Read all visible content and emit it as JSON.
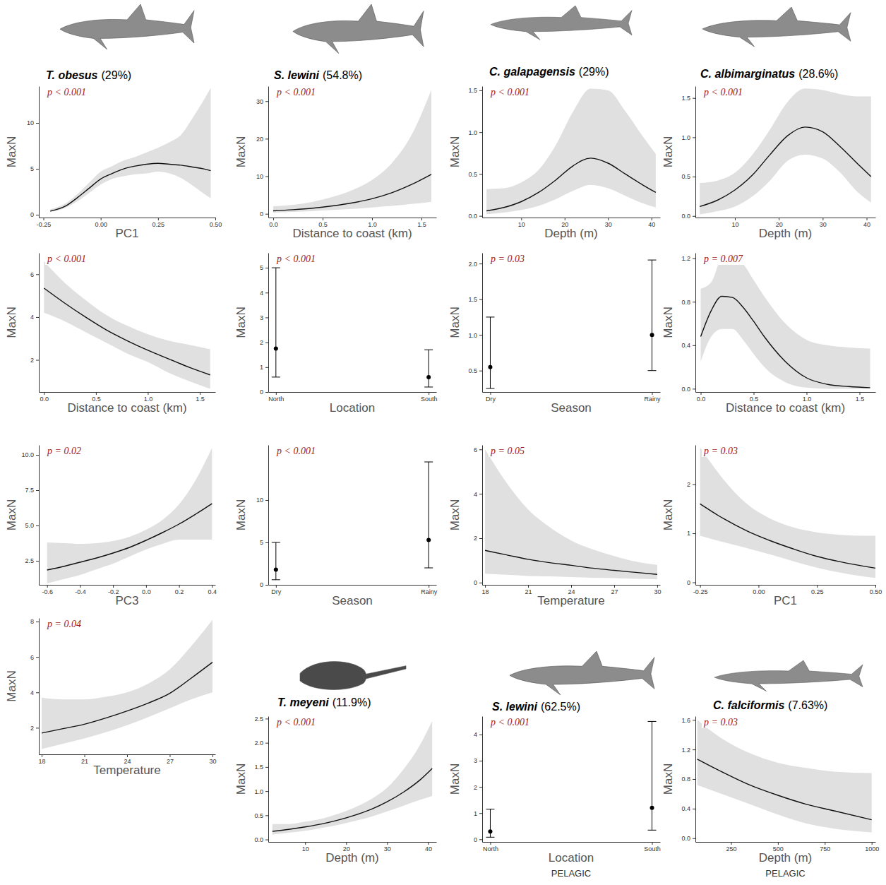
{
  "chart_data": [
    {
      "type": "line",
      "title": "T. obesus",
      "subtitle": "(29%)",
      "annotation": "p < 0.001",
      "xlabel": "PC1",
      "ylabel": "MaxN",
      "x": [
        -0.22,
        -0.15,
        -0.1,
        -0.05,
        0,
        0.05,
        0.1,
        0.15,
        0.2,
        0.25,
        0.3,
        0.35,
        0.4,
        0.45,
        0.48
      ],
      "values": [
        0.4,
        1.0,
        1.9,
        2.9,
        3.9,
        4.5,
        5.0,
        5.3,
        5.5,
        5.6,
        5.5,
        5.4,
        5.2,
        5.0,
        4.8
      ],
      "lower": [
        0.3,
        0.8,
        1.5,
        2.4,
        3.3,
        3.9,
        4.2,
        4.4,
        4.5,
        4.7,
        4.5,
        4.0,
        3.2,
        2.3,
        1.8
      ],
      "upper": [
        0.6,
        1.3,
        2.3,
        3.5,
        4.7,
        5.3,
        5.9,
        6.3,
        6.8,
        7.3,
        7.9,
        8.7,
        10.5,
        12.5,
        13.8
      ],
      "xlim": [
        -0.27,
        0.5
      ],
      "xticks": [
        -0.25,
        {
          "value": 0,
          "label": "0.00"
        },
        0.25,
        {
          "value": 0.5,
          "label": "0.50"
        }
      ],
      "ylim": [
        -0.3,
        14
      ],
      "yticks": [
        0,
        5,
        10
      ]
    },
    {
      "type": "line",
      "title": "S. lewini",
      "subtitle": "(54.8%)",
      "annotation": "p < 0.001",
      "xlabel": "Distance to coast (km)",
      "ylabel": "MaxN",
      "x": [
        0,
        0.2,
        0.4,
        0.6,
        0.8,
        1.0,
        1.2,
        1.4,
        1.6
      ],
      "values": [
        0.8,
        1.1,
        1.5,
        2.1,
        2.9,
        4.0,
        5.6,
        7.8,
        10.5
      ],
      "lower": [
        0.3,
        0.5,
        0.7,
        1.0,
        1.3,
        1.7,
        2.1,
        2.6,
        3.2
      ],
      "upper": [
        2.0,
        2.4,
        3.2,
        4.5,
        6.3,
        9.0,
        13.5,
        21,
        33
      ],
      "xlim": [
        -0.05,
        1.65
      ],
      "xticks": [
        {
          "value": 0,
          "label": "0.0"
        },
        0.5,
        {
          "value": 1,
          "label": "1.0"
        },
        1.5
      ],
      "ylim": [
        -1,
        34
      ],
      "yticks": [
        0,
        10,
        20,
        30
      ]
    },
    {
      "type": "line",
      "title": "C. galapagensis",
      "subtitle": "(29%)",
      "annotation": "p < 0.001",
      "xlabel": "Depth (m)",
      "ylabel": "MaxN",
      "x": [
        2,
        6,
        10,
        14,
        18,
        22,
        26,
        30,
        34,
        38,
        41
      ],
      "values": [
        0.06,
        0.1,
        0.17,
        0.28,
        0.43,
        0.6,
        0.69,
        0.63,
        0.5,
        0.37,
        0.28
      ],
      "lower": [
        0.02,
        0.04,
        0.07,
        0.12,
        0.2,
        0.3,
        0.37,
        0.33,
        0.24,
        0.15,
        0.1
      ],
      "upper": [
        0.32,
        0.33,
        0.4,
        0.55,
        0.85,
        1.25,
        1.52,
        1.5,
        1.25,
        0.95,
        0.74
      ],
      "xlim": [
        1,
        42
      ],
      "xticks": [
        10,
        20,
        30,
        40
      ],
      "ylim": [
        -0.02,
        1.55
      ],
      "yticks": [
        {
          "value": 0,
          "label": "0.0"
        },
        0.5,
        {
          "value": 1,
          "label": "1.0"
        },
        1.5
      ]
    },
    {
      "type": "line",
      "title": "C. albimarginatus",
      "subtitle": "(28.6%)",
      "annotation": "p < 0.001",
      "xlabel": "Depth (m)",
      "ylabel": "MaxN",
      "x": [
        2,
        6,
        10,
        14,
        18,
        22,
        26,
        30,
        34,
        38,
        41
      ],
      "values": [
        0.12,
        0.2,
        0.33,
        0.52,
        0.78,
        1.02,
        1.13,
        1.07,
        0.88,
        0.66,
        0.5
      ],
      "lower": [
        0.02,
        0.06,
        0.12,
        0.25,
        0.45,
        0.7,
        0.78,
        0.73,
        0.55,
        0.3,
        0.17
      ],
      "upper": [
        0.42,
        0.45,
        0.55,
        0.78,
        1.1,
        1.45,
        1.62,
        1.6,
        1.55,
        1.52,
        1.52
      ],
      "xlim": [
        1,
        42
      ],
      "xticks": [
        10,
        20,
        30,
        40
      ],
      "ylim": [
        -0.02,
        1.65
      ],
      "yticks": [
        {
          "value": 0,
          "label": "0.0"
        },
        0.5,
        {
          "value": 1,
          "label": "1.0"
        },
        1.5
      ]
    },
    {
      "type": "line",
      "annotation": "p < 0.001",
      "xlabel": "Distance to coast (km)",
      "ylabel": "MaxN",
      "x": [
        0,
        0.2,
        0.4,
        0.6,
        0.8,
        1.0,
        1.2,
        1.4,
        1.6
      ],
      "values": [
        5.35,
        4.65,
        4.0,
        3.4,
        2.9,
        2.45,
        2.05,
        1.65,
        1.3
      ],
      "lower": [
        4.2,
        3.8,
        3.3,
        2.8,
        2.3,
        1.9,
        1.4,
        1.0,
        0.65
      ],
      "upper": [
        6.6,
        5.6,
        4.8,
        4.1,
        3.6,
        3.2,
        2.9,
        2.7,
        2.5
      ],
      "xlim": [
        -0.05,
        1.65
      ],
      "xticks": [
        {
          "value": 0,
          "label": "0.0"
        },
        0.5,
        {
          "value": 1,
          "label": "1.0"
        },
        1.5
      ],
      "ylim": [
        0.5,
        7
      ],
      "yticks": [
        2,
        4,
        6
      ]
    },
    {
      "type": "errorbar",
      "annotation": "p < 0.001",
      "xlabel": "Location",
      "ylabel": "MaxN",
      "categories": [
        "North",
        "South"
      ],
      "values": [
        1.75,
        0.6
      ],
      "lower": [
        0.6,
        0.2
      ],
      "upper": [
        5.0,
        1.7
      ],
      "ylim": [
        0,
        5.6
      ],
      "yticks": [
        0,
        1,
        2,
        3,
        4,
        5
      ]
    },
    {
      "type": "errorbar",
      "annotation": "p = 0.03",
      "xlabel": "Season",
      "ylabel": "MaxN",
      "categories": [
        "Dry",
        "Rainy"
      ],
      "values": [
        0.55,
        1.0
      ],
      "lower": [
        0.25,
        0.5
      ],
      "upper": [
        1.25,
        2.05
      ],
      "ylim": [
        0.2,
        2.15
      ],
      "yticks": [
        0.5,
        {
          "value": 1,
          "label": "1.0"
        },
        1.5,
        {
          "value": 2,
          "label": "2.0"
        }
      ]
    },
    {
      "type": "line",
      "annotation": "p = 0.007",
      "xlabel": "Distance to coast (km)",
      "ylabel": "MaxN",
      "x": [
        0,
        0.1,
        0.2,
        0.3,
        0.4,
        0.5,
        0.6,
        0.8,
        1.0,
        1.2,
        1.4,
        1.6
      ],
      "values": [
        0.48,
        0.72,
        0.85,
        0.84,
        0.75,
        0.62,
        0.48,
        0.25,
        0.1,
        0.04,
        0.02,
        0.01
      ],
      "lower": [
        0.25,
        0.48,
        0.55,
        0.55,
        0.45,
        0.32,
        0.2,
        0.06,
        0.01,
        0,
        0,
        0
      ],
      "upper": [
        0.92,
        0.98,
        1.2,
        1.22,
        1.15,
        1.0,
        0.85,
        0.6,
        0.45,
        0.4,
        0.38,
        0.37
      ],
      "xlim": [
        -0.05,
        1.65
      ],
      "xticks": [
        {
          "value": 0,
          "label": "0.0"
        },
        0.5,
        {
          "value": 1,
          "label": "1.0"
        },
        1.5
      ],
      "ylim": [
        -0.03,
        1.25
      ],
      "yticks": [
        {
          "value": 0,
          "label": "0.0"
        },
        0.4,
        0.8,
        1.2
      ]
    },
    {
      "type": "line",
      "annotation": "p = 0.02",
      "xlabel": "PC3",
      "ylabel": "MaxN",
      "x": [
        -0.6,
        -0.5,
        -0.4,
        -0.3,
        -0.2,
        -0.1,
        0,
        0.1,
        0.2,
        0.3,
        0.4
      ],
      "values": [
        1.85,
        2.1,
        2.4,
        2.7,
        3.05,
        3.45,
        3.95,
        4.5,
        5.1,
        5.8,
        6.55
      ],
      "lower": [
        0.9,
        1.2,
        1.5,
        1.9,
        2.3,
        2.8,
        3.3,
        3.7,
        4.0,
        4.0,
        4.0
      ],
      "upper": [
        3.8,
        3.75,
        3.7,
        3.75,
        3.9,
        4.2,
        4.7,
        5.4,
        6.5,
        8.2,
        10.5
      ],
      "xlim": [
        -0.65,
        0.42
      ],
      "xticks": [
        -0.6,
        -0.4,
        -0.2,
        {
          "value": 0,
          "label": "0.0"
        },
        0.2,
        0.4
      ],
      "ylim": [
        0.8,
        10.7
      ],
      "yticks": [
        2.5,
        {
          "value": 5,
          "label": "5.0"
        },
        7.5,
        {
          "value": 10,
          "label": "10.0"
        }
      ]
    },
    {
      "type": "errorbar",
      "annotation": "p < 0.001",
      "xlabel": "Season",
      "ylabel": "MaxN",
      "categories": [
        "Dry",
        "Rainy"
      ],
      "values": [
        1.8,
        5.3
      ],
      "lower": [
        0.6,
        2.0
      ],
      "upper": [
        5.0,
        14.5
      ],
      "ylim": [
        0,
        16.5
      ],
      "yticks": [
        0,
        5,
        10
      ]
    },
    {
      "type": "line",
      "annotation": "p = 0.05",
      "xlabel": "Temperature",
      "ylabel": "MaxN",
      "x": [
        18,
        19.5,
        21,
        22.5,
        24,
        25.5,
        27,
        28.5,
        30
      ],
      "values": [
        1.45,
        1.25,
        1.05,
        0.9,
        0.78,
        0.65,
        0.55,
        0.46,
        0.37
      ],
      "lower": [
        0.4,
        0.35,
        0.3,
        0.28,
        0.25,
        0.22,
        0.2,
        0.17,
        0.15
      ],
      "upper": [
        6.0,
        4.5,
        3.3,
        2.5,
        1.9,
        1.5,
        1.2,
        0.95,
        0.8
      ],
      "xlim": [
        17.8,
        30.2
      ],
      "xticks": [
        18,
        21,
        24,
        27,
        30
      ],
      "ylim": [
        -0.1,
        6.2
      ],
      "yticks": [
        0,
        2,
        4,
        6
      ]
    },
    {
      "type": "line",
      "annotation": "p = 0.03",
      "xlabel": "PC1",
      "ylabel": "MaxN",
      "x": [
        -0.25,
        -0.15,
        -0.05,
        0.05,
        0.15,
        0.25,
        0.35,
        0.45,
        0.5
      ],
      "values": [
        1.6,
        1.3,
        1.05,
        0.85,
        0.68,
        0.53,
        0.42,
        0.33,
        0.29
      ],
      "lower": [
        0.95,
        0.82,
        0.7,
        0.57,
        0.43,
        0.3,
        0.2,
        0.12,
        0.09
      ],
      "upper": [
        2.75,
        2.1,
        1.6,
        1.3,
        1.12,
        1.02,
        0.97,
        0.95,
        0.95
      ],
      "xlim": [
        -0.27,
        0.5
      ],
      "xticks": [
        -0.25,
        {
          "value": 0,
          "label": "0.00"
        },
        0.25,
        {
          "value": 0.5,
          "label": "0.50"
        }
      ],
      "ylim": [
        -0.05,
        2.8
      ],
      "yticks": [
        0,
        1,
        2
      ]
    },
    {
      "type": "line",
      "annotation": "p = 0.04",
      "xlabel": "Temperature",
      "ylabel": "MaxN",
      "x": [
        18,
        19.5,
        21,
        22.5,
        24,
        25.5,
        27,
        28.5,
        30
      ],
      "values": [
        1.7,
        1.95,
        2.2,
        2.55,
        2.95,
        3.4,
        3.95,
        4.8,
        5.7
      ],
      "lower": [
        0.8,
        1.1,
        1.4,
        1.75,
        2.15,
        2.6,
        3.1,
        3.6,
        4.0
      ],
      "upper": [
        3.7,
        3.6,
        3.6,
        3.75,
        4.0,
        4.5,
        5.3,
        6.6,
        8.1
      ],
      "xlim": [
        17.8,
        30.2
      ],
      "xticks": [
        18,
        21,
        24,
        27,
        30
      ],
      "ylim": [
        0.5,
        8.2
      ],
      "yticks": [
        2,
        4,
        6,
        8
      ]
    },
    {
      "type": "line",
      "title": "T. meyeni",
      "subtitle": "(11.9%)",
      "annotation": "p < 0.001",
      "xlabel": "Depth (m)",
      "ylabel": "MaxN",
      "x": [
        2,
        6,
        10,
        14,
        18,
        22,
        26,
        30,
        34,
        38,
        41
      ],
      "values": [
        0.17,
        0.21,
        0.26,
        0.32,
        0.4,
        0.5,
        0.62,
        0.78,
        0.98,
        1.23,
        1.47
      ],
      "lower": [
        0.1,
        0.14,
        0.18,
        0.24,
        0.3,
        0.38,
        0.47,
        0.58,
        0.7,
        0.82,
        0.9
      ],
      "upper": [
        0.32,
        0.32,
        0.37,
        0.43,
        0.53,
        0.66,
        0.83,
        1.07,
        1.45,
        1.95,
        2.45
      ],
      "xlim": [
        1,
        42
      ],
      "xticks": [
        10,
        20,
        30,
        40
      ],
      "ylim": [
        -0.05,
        2.55
      ],
      "yticks": [
        {
          "value": 0,
          "label": "0.0"
        },
        0.5,
        {
          "value": 1,
          "label": "1.0"
        },
        1.5,
        {
          "value": 2,
          "label": "2.0"
        },
        2.5
      ]
    },
    {
      "type": "errorbar",
      "title": "S. lewini",
      "subtitle": "(62.5%)",
      "annotation": "p < 0.001",
      "xlabel": "Location",
      "ylabel": "MaxN",
      "caption": "PELAGIC",
      "categories": [
        "North",
        "South"
      ],
      "values": [
        0.3,
        1.2
      ],
      "lower": [
        0.08,
        0.35
      ],
      "upper": [
        1.15,
        4.5
      ],
      "ylim": [
        -0.1,
        4.7
      ],
      "yticks": [
        0,
        1,
        2,
        3,
        4
      ]
    },
    {
      "type": "line",
      "title": "C. falciformis",
      "subtitle": "(7.63%)",
      "annotation": "p = 0.03",
      "xlabel": "Depth (m)",
      "ylabel": "MaxN",
      "caption": "PELAGIC",
      "x": [
        70,
        200,
        350,
        500,
        650,
        800,
        1000
      ],
      "values": [
        1.07,
        0.9,
        0.72,
        0.58,
        0.46,
        0.37,
        0.25
      ],
      "lower": [
        0.72,
        0.6,
        0.46,
        0.32,
        0.2,
        0.13,
        0.08
      ],
      "upper": [
        1.6,
        1.35,
        1.15,
        1.02,
        0.95,
        0.9,
        0.88
      ],
      "xlim": [
        60,
        1020
      ],
      "xticks": [
        250,
        500,
        750,
        1000
      ],
      "ylim": [
        -0.05,
        1.65
      ],
      "yticks": [
        {
          "value": 0,
          "label": "0.0"
        },
        0.4,
        0.8,
        1.2,
        1.6
      ]
    }
  ]
}
